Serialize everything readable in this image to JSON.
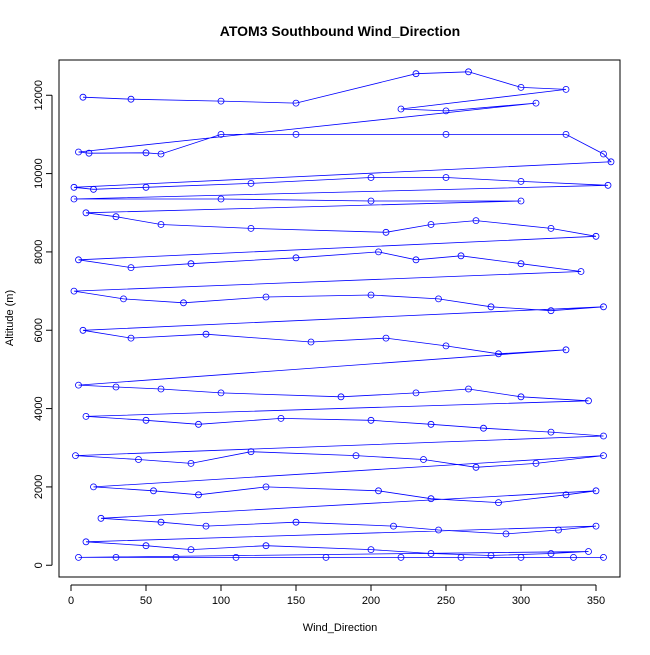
{
  "chart_data": {
    "type": "scatter",
    "title": "ATOM3 Southbound Wind_Direction",
    "xlabel": "Wind_Direction",
    "ylabel": "Altitude (m)",
    "xlim": [
      -8,
      366
    ],
    "ylim": [
      -300,
      12900
    ],
    "xticks": [
      0,
      50,
      100,
      150,
      200,
      250,
      300,
      350
    ],
    "yticks": [
      0,
      2000,
      4000,
      6000,
      8000,
      10000,
      12000
    ],
    "grid": false,
    "legend": "none",
    "series_color": "#0000ff",
    "marker": "open-circle",
    "connected": true,
    "series": [
      {
        "points": [
          [
            8,
            11950
          ],
          [
            40,
            11900
          ],
          [
            100,
            11850
          ],
          [
            150,
            11800
          ],
          [
            230,
            12550
          ],
          [
            265,
            12600
          ],
          [
            300,
            12200
          ],
          [
            330,
            12150
          ],
          [
            220,
            11650
          ],
          [
            250,
            11600
          ],
          [
            310,
            11800
          ],
          [
            5,
            10550
          ],
          [
            12,
            10520
          ],
          [
            50,
            10530
          ],
          [
            60,
            10500
          ],
          [
            100,
            11000
          ],
          [
            150,
            11000
          ],
          [
            250,
            11000
          ],
          [
            330,
            11000
          ],
          [
            355,
            10500
          ],
          [
            360,
            10300
          ],
          [
            2,
            9650
          ],
          [
            15,
            9600
          ],
          [
            50,
            9650
          ],
          [
            120,
            9750
          ],
          [
            200,
            9900
          ],
          [
            250,
            9900
          ],
          [
            300,
            9800
          ],
          [
            358,
            9700
          ],
          [
            2,
            9350
          ],
          [
            100,
            9350
          ],
          [
            200,
            9300
          ],
          [
            300,
            9300
          ],
          [
            10,
            9000
          ],
          [
            30,
            8900
          ],
          [
            60,
            8700
          ],
          [
            120,
            8600
          ],
          [
            210,
            8500
          ],
          [
            240,
            8700
          ],
          [
            270,
            8800
          ],
          [
            320,
            8600
          ],
          [
            350,
            8400
          ],
          [
            5,
            7800
          ],
          [
            40,
            7600
          ],
          [
            80,
            7700
          ],
          [
            150,
            7850
          ],
          [
            205,
            8000
          ],
          [
            230,
            7800
          ],
          [
            260,
            7900
          ],
          [
            300,
            7700
          ],
          [
            340,
            7500
          ],
          [
            2,
            7000
          ],
          [
            35,
            6800
          ],
          [
            75,
            6700
          ],
          [
            130,
            6850
          ],
          [
            200,
            6900
          ],
          [
            245,
            6800
          ],
          [
            280,
            6600
          ],
          [
            320,
            6500
          ],
          [
            355,
            6600
          ],
          [
            8,
            6000
          ],
          [
            40,
            5800
          ],
          [
            90,
            5900
          ],
          [
            160,
            5700
          ],
          [
            210,
            5800
          ],
          [
            250,
            5600
          ],
          [
            285,
            5400
          ],
          [
            330,
            5500
          ],
          [
            5,
            4600
          ],
          [
            30,
            4550
          ],
          [
            60,
            4500
          ],
          [
            100,
            4400
          ],
          [
            180,
            4300
          ],
          [
            230,
            4400
          ],
          [
            265,
            4500
          ],
          [
            300,
            4300
          ],
          [
            345,
            4200
          ],
          [
            10,
            3800
          ],
          [
            50,
            3700
          ],
          [
            85,
            3600
          ],
          [
            140,
            3750
          ],
          [
            200,
            3700
          ],
          [
            240,
            3600
          ],
          [
            275,
            3500
          ],
          [
            320,
            3400
          ],
          [
            355,
            3300
          ],
          [
            3,
            2800
          ],
          [
            45,
            2700
          ],
          [
            80,
            2600
          ],
          [
            120,
            2900
          ],
          [
            190,
            2800
          ],
          [
            235,
            2700
          ],
          [
            270,
            2500
          ],
          [
            310,
            2600
          ],
          [
            355,
            2800
          ],
          [
            15,
            2000
          ],
          [
            55,
            1900
          ],
          [
            85,
            1800
          ],
          [
            130,
            2000
          ],
          [
            205,
            1900
          ],
          [
            240,
            1700
          ],
          [
            285,
            1600
          ],
          [
            330,
            1800
          ],
          [
            350,
            1900
          ],
          [
            20,
            1200
          ],
          [
            60,
            1100
          ],
          [
            90,
            1000
          ],
          [
            150,
            1100
          ],
          [
            215,
            1000
          ],
          [
            245,
            900
          ],
          [
            290,
            800
          ],
          [
            325,
            900
          ],
          [
            350,
            1000
          ],
          [
            10,
            600
          ],
          [
            50,
            500
          ],
          [
            80,
            400
          ],
          [
            130,
            500
          ],
          [
            200,
            400
          ],
          [
            240,
            300
          ],
          [
            280,
            250
          ],
          [
            320,
            300
          ],
          [
            345,
            350
          ],
          [
            5,
            200
          ],
          [
            30,
            200
          ],
          [
            70,
            200
          ],
          [
            110,
            200
          ],
          [
            170,
            200
          ],
          [
            220,
            200
          ],
          [
            260,
            200
          ],
          [
            300,
            200
          ],
          [
            335,
            200
          ],
          [
            355,
            200
          ]
        ]
      }
    ]
  }
}
